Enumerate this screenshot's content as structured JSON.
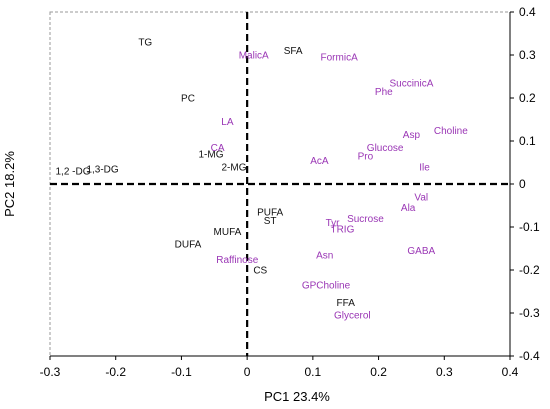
{
  "chart_data": {
    "type": "scatter",
    "title": "",
    "xlabel": "PC1 23.4%",
    "ylabel": "PC2 18.2%",
    "xlim": [
      -0.3,
      0.4
    ],
    "ylim": [
      -0.4,
      0.4
    ],
    "xticks": [
      "-0.3",
      "-0.2",
      "-0.1",
      "0",
      "0.1",
      "0.2",
      "0.3",
      "0.4"
    ],
    "yticks": [
      "0.4",
      "0.3",
      "0.2",
      "0.1",
      "0",
      "-0.1",
      "-0.2",
      "-0.3",
      "-0.4"
    ],
    "grid": false,
    "colors": {
      "lipid": "#111111",
      "metabolite": "#9a36b5"
    },
    "points": [
      {
        "label": "TG",
        "x": -0.155,
        "y": 0.33,
        "group": "lipid"
      },
      {
        "label": "PC",
        "x": -0.09,
        "y": 0.2,
        "group": "lipid"
      },
      {
        "label": "1-MG",
        "x": -0.055,
        "y": 0.07,
        "group": "lipid"
      },
      {
        "label": "1,2 -DG",
        "x": -0.265,
        "y": 0.03,
        "group": "lipid"
      },
      {
        "label": "1,3-DG",
        "x": -0.22,
        "y": 0.035,
        "group": "lipid"
      },
      {
        "label": "2-MG",
        "x": -0.02,
        "y": 0.04,
        "group": "lipid"
      },
      {
        "label": "SFA",
        "x": 0.07,
        "y": 0.31,
        "group": "lipid"
      },
      {
        "label": "PUFA",
        "x": 0.035,
        "y": -0.065,
        "group": "lipid"
      },
      {
        "label": "ST",
        "x": 0.035,
        "y": -0.085,
        "group": "lipid"
      },
      {
        "label": "MUFA",
        "x": -0.03,
        "y": -0.11,
        "group": "lipid"
      },
      {
        "label": "DUFA",
        "x": -0.09,
        "y": -0.14,
        "group": "lipid"
      },
      {
        "label": "CS",
        "x": 0.02,
        "y": -0.2,
        "group": "lipid"
      },
      {
        "label": "FFA",
        "x": 0.15,
        "y": -0.275,
        "group": "lipid"
      },
      {
        "label": "MalicA",
        "x": 0.01,
        "y": 0.3,
        "group": "metabolite"
      },
      {
        "label": "FormicA",
        "x": 0.14,
        "y": 0.295,
        "group": "metabolite"
      },
      {
        "label": "SuccinicA",
        "x": 0.25,
        "y": 0.235,
        "group": "metabolite"
      },
      {
        "label": "Phe",
        "x": 0.208,
        "y": 0.215,
        "group": "metabolite"
      },
      {
        "label": "LA",
        "x": -0.03,
        "y": 0.145,
        "group": "metabolite"
      },
      {
        "label": "CA",
        "x": -0.045,
        "y": 0.085,
        "group": "metabolite"
      },
      {
        "label": "Asp",
        "x": 0.25,
        "y": 0.115,
        "group": "metabolite"
      },
      {
        "label": "Choline",
        "x": 0.31,
        "y": 0.125,
        "group": "metabolite"
      },
      {
        "label": "Glucose",
        "x": 0.21,
        "y": 0.085,
        "group": "metabolite"
      },
      {
        "label": "Pro",
        "x": 0.18,
        "y": 0.065,
        "group": "metabolite"
      },
      {
        "label": "AcA",
        "x": 0.11,
        "y": 0.055,
        "group": "metabolite"
      },
      {
        "label": "Ile",
        "x": 0.27,
        "y": 0.04,
        "group": "metabolite"
      },
      {
        "label": "Val",
        "x": 0.265,
        "y": -0.03,
        "group": "metabolite"
      },
      {
        "label": "Ala",
        "x": 0.245,
        "y": -0.055,
        "group": "metabolite"
      },
      {
        "label": "Sucrose",
        "x": 0.18,
        "y": -0.08,
        "group": "metabolite"
      },
      {
        "label": "Tyr",
        "x": 0.13,
        "y": -0.09,
        "group": "metabolite"
      },
      {
        "label": "TRIG",
        "x": 0.145,
        "y": -0.105,
        "group": "metabolite"
      },
      {
        "label": "Raffinose",
        "x": -0.015,
        "y": -0.175,
        "group": "metabolite"
      },
      {
        "label": "Asn",
        "x": 0.118,
        "y": -0.165,
        "group": "metabolite"
      },
      {
        "label": "GABA",
        "x": 0.265,
        "y": -0.155,
        "group": "metabolite"
      },
      {
        "label": "GPCholine",
        "x": 0.12,
        "y": -0.235,
        "group": "metabolite"
      },
      {
        "label": "Glycerol",
        "x": 0.16,
        "y": -0.305,
        "group": "metabolite"
      }
    ]
  }
}
